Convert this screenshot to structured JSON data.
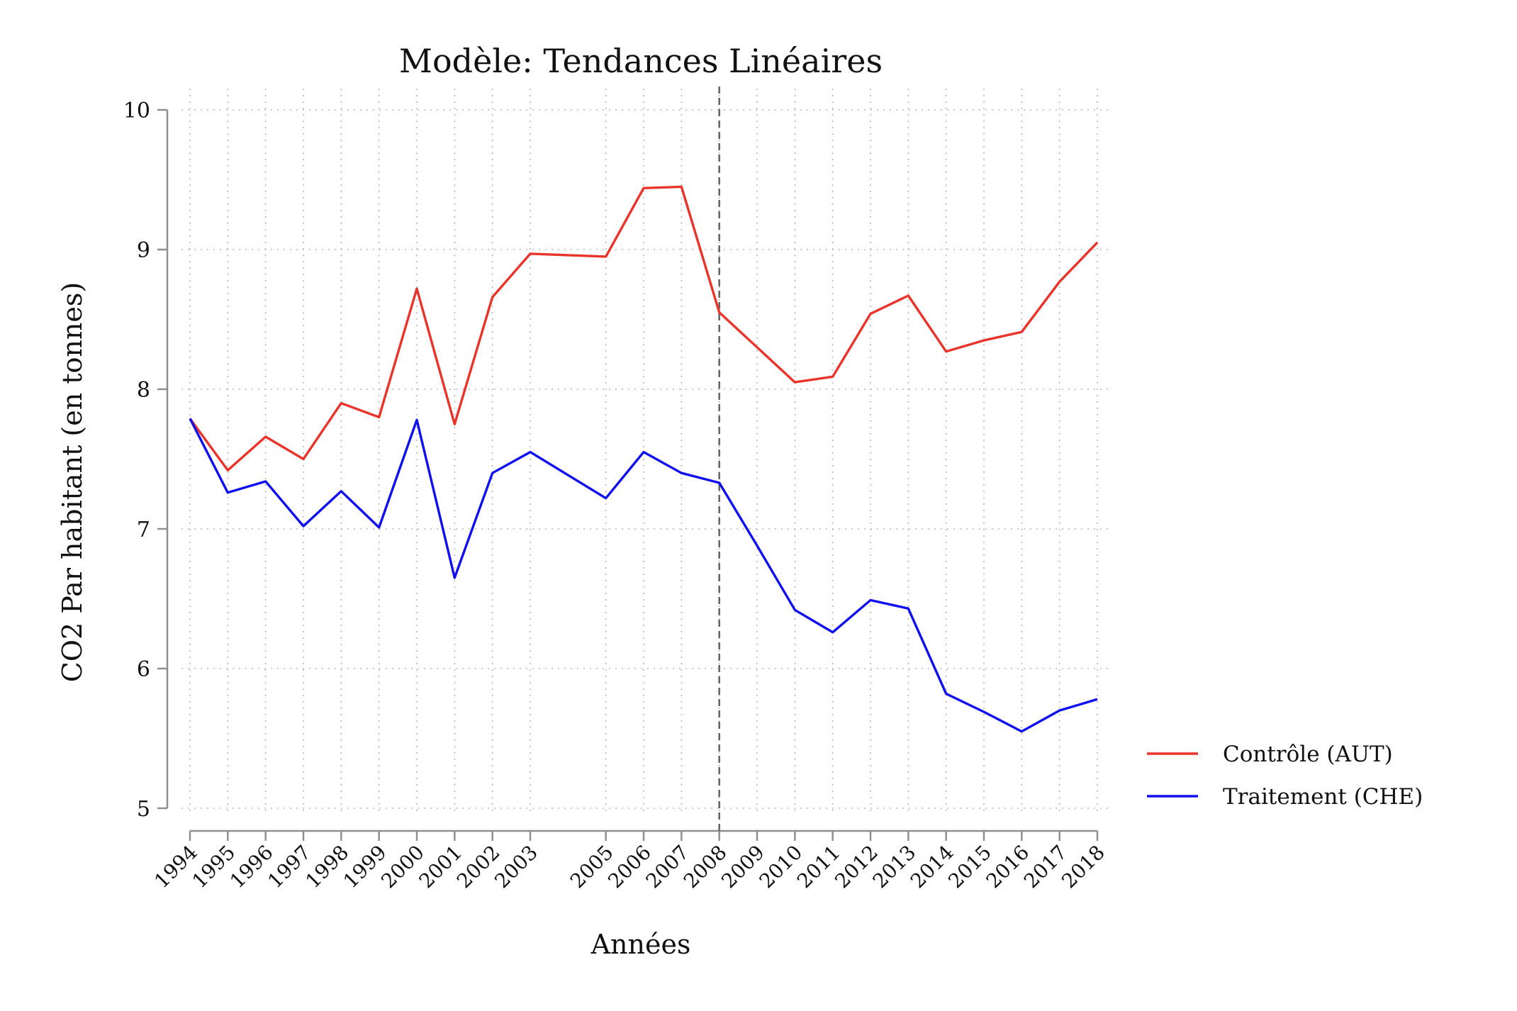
{
  "chart_data": {
    "type": "line",
    "title": "Modèle: Tendances Linéaires",
    "xlabel": "Années",
    "ylabel": "CO2 Par habitant (en tonnes)",
    "ylim": [
      5,
      10
    ],
    "yticks": [
      5,
      6,
      7,
      8,
      9,
      10
    ],
    "xlim": [
      1994,
      2018
    ],
    "xticks": [
      1994,
      1995,
      1996,
      1997,
      1998,
      1999,
      2000,
      2001,
      2002,
      2003,
      2005,
      2006,
      2007,
      2008,
      2009,
      2010,
      2011,
      2012,
      2013,
      2014,
      2015,
      2016,
      2017,
      2018
    ],
    "grid": true,
    "vline": 2008,
    "legend_position": "right",
    "x": [
      1994,
      1995,
      1996,
      1997,
      1998,
      1999,
      2000,
      2001,
      2002,
      2003,
      2005,
      2006,
      2007,
      2008,
      2009,
      2010,
      2011,
      2012,
      2013,
      2014,
      2015,
      2016,
      2017,
      2018
    ],
    "series": [
      {
        "name": "Contrôle (AUT)",
        "color": "#e8342a",
        "values": [
          7.79,
          7.42,
          7.66,
          7.5,
          7.9,
          7.8,
          8.72,
          7.75,
          8.66,
          8.97,
          8.95,
          9.44,
          9.45,
          8.55,
          8.3,
          8.05,
          8.09,
          8.54,
          8.67,
          8.27,
          8.35,
          8.41,
          8.77,
          9.05
        ]
      },
      {
        "name": "Traitement (CHE)",
        "color": "#1010ee",
        "values": [
          7.79,
          7.26,
          7.34,
          7.02,
          7.27,
          7.01,
          7.78,
          6.65,
          7.4,
          7.55,
          7.22,
          7.55,
          7.4,
          7.33,
          6.88,
          6.42,
          6.26,
          6.49,
          6.43,
          5.82,
          5.69,
          5.55,
          5.7,
          5.78
        ]
      }
    ]
  }
}
